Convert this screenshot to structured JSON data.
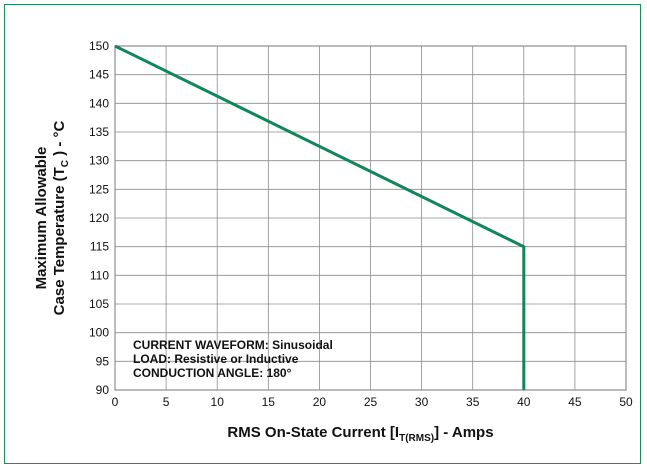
{
  "colors": {
    "frame": "#1e8a5a",
    "line": "#11865a",
    "grid": "#8c8c8c",
    "axis": "#333333",
    "text": "#111111"
  },
  "chart_data": {
    "type": "line",
    "title": "",
    "xlabel": {
      "prefix": "RMS On-State Current [I",
      "subscript": "T(RMS)",
      "suffix": "] - Amps"
    },
    "ylabel": {
      "line1": "Maximum Allowable",
      "line2_prefix": "Case Temperature (T",
      "line2_subscript": "C",
      "line2_suffix": " ) - °C"
    },
    "xlim": [
      0,
      50
    ],
    "ylim": [
      90,
      150
    ],
    "xticks": [
      "0",
      "5",
      "10",
      "15",
      "20",
      "25",
      "30",
      "35",
      "40",
      "45",
      "50"
    ],
    "yticks": [
      "90",
      "95",
      "100",
      "105",
      "110",
      "115",
      "120",
      "125",
      "130",
      "135",
      "140",
      "145",
      "150"
    ],
    "grid": true,
    "series": [
      {
        "x": [
          0,
          40,
          40
        ],
        "y": [
          150,
          115,
          90
        ]
      }
    ],
    "annotations": [
      "CURRENT WAVEFORM: Sinusoidal",
      "LOAD: Resistive or Inductive",
      "CONDUCTION ANGLE: 180°"
    ]
  }
}
